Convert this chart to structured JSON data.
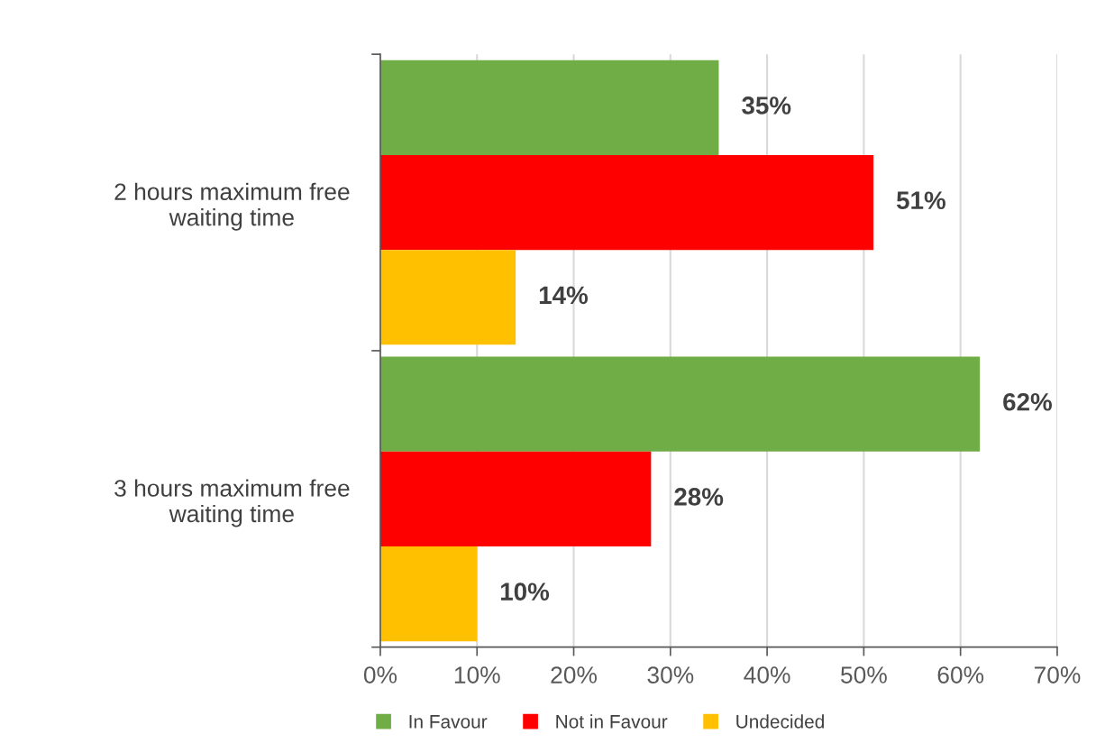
{
  "chart_data": {
    "type": "bar",
    "orientation": "horizontal",
    "categories": [
      "2 hours maximum free\nwaiting time",
      "3 hours maximum free\nwaiting time"
    ],
    "series": [
      {
        "name": "In Favour",
        "color": "#70ad47",
        "values": [
          35,
          62
        ],
        "value_labels": [
          "35%",
          "62%"
        ]
      },
      {
        "name": "Not in Favour",
        "color": "#ff0000",
        "values": [
          51,
          28
        ],
        "value_labels": [
          "51%",
          "28%"
        ]
      },
      {
        "name": "Undecided",
        "color": "#ffc000",
        "values": [
          14,
          10
        ],
        "value_labels": [
          "14%",
          "10%"
        ]
      }
    ],
    "xlim": [
      0,
      70
    ],
    "xticks": [
      {
        "value": 0,
        "label": "0%"
      },
      {
        "value": 10,
        "label": "10%"
      },
      {
        "value": 20,
        "label": "20%"
      },
      {
        "value": 30,
        "label": "30%"
      },
      {
        "value": 40,
        "label": "40%"
      },
      {
        "value": 50,
        "label": "50%"
      },
      {
        "value": 60,
        "label": "60%"
      },
      {
        "value": 70,
        "label": "70%"
      }
    ],
    "grid": "x",
    "legend": "bottom"
  }
}
